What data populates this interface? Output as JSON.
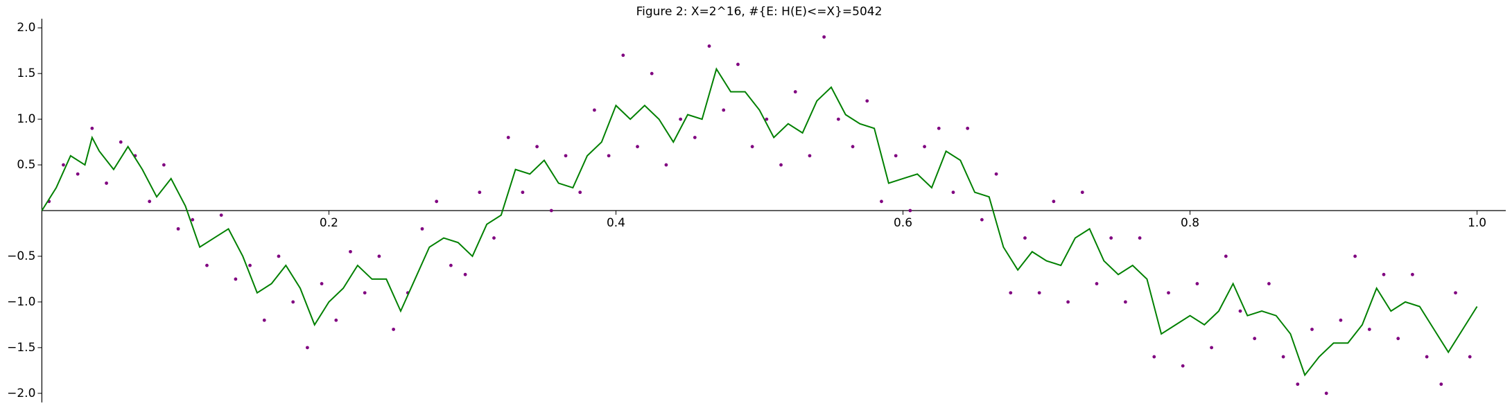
{
  "chart_data": {
    "type": "line",
    "title": "Figure 2: X=2^16, #{E: H(E)<=X}=5042",
    "xlim": [
      0,
      1.02
    ],
    "ylim": [
      -2.1,
      2.1
    ],
    "xticks": [
      0.2,
      0.4,
      0.6,
      0.8,
      {
        "value": 1,
        "label": "1.0"
      }
    ],
    "yticks": [
      {
        "value": -2,
        "label": "−2.0"
      },
      {
        "value": -1.5,
        "label": "−1.5"
      },
      {
        "value": -1,
        "label": "−1.0"
      },
      {
        "value": -0.5,
        "label": "−0.5"
      },
      0.5,
      {
        "value": 1,
        "label": "1.0"
      },
      1.5,
      {
        "value": 2,
        "label": "2.0"
      }
    ],
    "series": [
      {
        "type": "scatter",
        "color": "#800080",
        "x": [
          0.005,
          0.015,
          0.025,
          0.035,
          0.045,
          0.055,
          0.065,
          0.075,
          0.085,
          0.095,
          0.105,
          0.115,
          0.125,
          0.135,
          0.145,
          0.155,
          0.165,
          0.175,
          0.185,
          0.195,
          0.205,
          0.215,
          0.225,
          0.235,
          0.245,
          0.255,
          0.265,
          0.275,
          0.285,
          0.295,
          0.305,
          0.315,
          0.325,
          0.335,
          0.345,
          0.355,
          0.365,
          0.375,
          0.385,
          0.395,
          0.405,
          0.415,
          0.425,
          0.435,
          0.445,
          0.455,
          0.465,
          0.475,
          0.485,
          0.495,
          0.505,
          0.515,
          0.525,
          0.535,
          0.545,
          0.555,
          0.565,
          0.575,
          0.585,
          0.595,
          0.605,
          0.615,
          0.625,
          0.635,
          0.645,
          0.655,
          0.665,
          0.675,
          0.685,
          0.695,
          0.705,
          0.715,
          0.725,
          0.735,
          0.745,
          0.755,
          0.765,
          0.775,
          0.785,
          0.795,
          0.805,
          0.815,
          0.825,
          0.835,
          0.845,
          0.855,
          0.865,
          0.875,
          0.885,
          0.895,
          0.905,
          0.915,
          0.925,
          0.935,
          0.945,
          0.955,
          0.965,
          0.975,
          0.985,
          0.995
        ],
        "values": [
          0.1,
          0.5,
          0.4,
          0.9,
          0.3,
          0.75,
          0.6,
          0.1,
          0.5,
          -0.2,
          -0.1,
          -0.6,
          -0.05,
          -0.75,
          -0.6,
          -1.2,
          -0.5,
          -1.0,
          -1.5,
          -0.8,
          -1.2,
          -0.45,
          -0.9,
          -0.5,
          -1.3,
          -0.9,
          -0.2,
          0.1,
          -0.6,
          -0.7,
          0.2,
          -0.3,
          0.8,
          0.2,
          0.7,
          0.0,
          0.6,
          0.2,
          1.1,
          0.6,
          1.7,
          0.7,
          1.5,
          0.5,
          1.0,
          0.8,
          1.8,
          1.1,
          1.6,
          0.7,
          1.0,
          0.5,
          1.3,
          0.6,
          1.9,
          1.0,
          0.7,
          1.2,
          0.1,
          0.6,
          0.0,
          0.7,
          0.9,
          0.2,
          0.9,
          -0.1,
          0.4,
          -0.9,
          -0.3,
          -0.9,
          0.1,
          -1.0,
          0.2,
          -0.8,
          -0.3,
          -1.0,
          -0.3,
          -1.6,
          -0.9,
          -1.7,
          -0.8,
          -1.5,
          -0.5,
          -1.1,
          -1.4,
          -0.8,
          -1.6,
          -1.9,
          -1.3,
          -2.0,
          -1.2,
          -0.5,
          -1.3,
          -0.7,
          -1.4,
          -0.7,
          -1.6,
          -1.9,
          -0.9,
          -1.6
        ]
      },
      {
        "type": "line",
        "color": "#008000",
        "x": [
          0,
          0.01,
          0.02,
          0.03,
          0.035,
          0.04,
          0.05,
          0.06,
          0.07,
          0.08,
          0.09,
          0.1,
          0.11,
          0.12,
          0.13,
          0.14,
          0.15,
          0.16,
          0.17,
          0.18,
          0.19,
          0.2,
          0.21,
          0.22,
          0.23,
          0.24,
          0.25,
          0.26,
          0.27,
          0.28,
          0.29,
          0.3,
          0.31,
          0.32,
          0.33,
          0.34,
          0.35,
          0.36,
          0.37,
          0.38,
          0.39,
          0.4,
          0.41,
          0.42,
          0.43,
          0.44,
          0.45,
          0.46,
          0.47,
          0.48,
          0.49,
          0.5,
          0.51,
          0.52,
          0.53,
          0.54,
          0.55,
          0.56,
          0.57,
          0.58,
          0.59,
          0.6,
          0.61,
          0.62,
          0.63,
          0.64,
          0.65,
          0.66,
          0.67,
          0.68,
          0.69,
          0.7,
          0.71,
          0.72,
          0.73,
          0.74,
          0.75,
          0.76,
          0.77,
          0.78,
          0.79,
          0.8,
          0.81,
          0.82,
          0.83,
          0.84,
          0.85,
          0.86,
          0.87,
          0.88,
          0.89,
          0.9,
          0.91,
          0.92,
          0.93,
          0.94,
          0.95,
          0.96,
          0.97,
          0.98,
          0.99,
          1
        ],
        "values": [
          0,
          0.25,
          0.6,
          0.5,
          0.8,
          0.65,
          0.45,
          0.7,
          0.45,
          0.15,
          0.35,
          0.05,
          -0.4,
          -0.3,
          -0.2,
          -0.5,
          -0.9,
          -0.8,
          -0.6,
          -0.85,
          -1.25,
          -1.0,
          -0.85,
          -0.6,
          -0.75,
          -0.75,
          -1.1,
          -0.75,
          -0.4,
          -0.3,
          -0.35,
          -0.5,
          -0.15,
          -0.05,
          0.45,
          0.4,
          0.55,
          0.3,
          0.25,
          0.6,
          0.75,
          1.15,
          1.0,
          1.15,
          1.0,
          0.75,
          1.05,
          1.0,
          1.55,
          1.3,
          1.3,
          1.1,
          0.8,
          0.95,
          0.85,
          1.2,
          1.35,
          1.05,
          0.95,
          0.9,
          0.3,
          0.35,
          0.4,
          0.25,
          0.65,
          0.55,
          0.2,
          0.15,
          -0.4,
          -0.65,
          -0.45,
          -0.55,
          -0.6,
          -0.3,
          -0.2,
          -0.55,
          -0.7,
          -0.6,
          -0.75,
          -1.35,
          -1.25,
          -1.15,
          -1.25,
          -1.1,
          -0.8,
          -1.15,
          -1.1,
          -1.15,
          -1.35,
          -1.8,
          -1.6,
          -1.45,
          -1.45,
          -1.25,
          -0.85,
          -1.1,
          -1.0,
          -1.05,
          -1.3,
          -1.55,
          -1.3,
          -1.05
        ]
      }
    ]
  }
}
